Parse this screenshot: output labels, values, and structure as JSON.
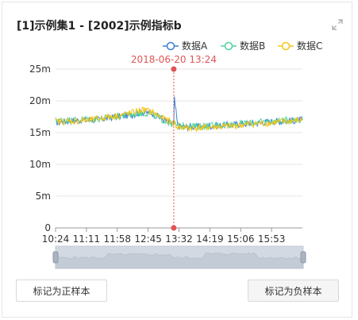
{
  "panel": {
    "title": "[1]示例集1 - [2002]示例指标b",
    "expand_icon": "expand-arrows-icon"
  },
  "buttons": {
    "mark_positive": "标记为正样本",
    "mark_negative": "标记为负样本"
  },
  "colors": {
    "series_a": "#3b7fd8",
    "series_b": "#4fd39a",
    "series_c": "#f5c518",
    "marker": "#e05555",
    "grid": "#e6e6e6",
    "zoom_fill": "#d2d9e3"
  },
  "chart_data": {
    "type": "line",
    "title": "",
    "xlabel": "",
    "ylabel": "",
    "x_ticks": [
      "10:24",
      "11:11",
      "11:58",
      "12:45",
      "13:32",
      "14:19",
      "15:06",
      "15:53"
    ],
    "y_ticks": [
      "0",
      "5m",
      "10m",
      "15m",
      "20m",
      "25m"
    ],
    "ylim": [
      0,
      25000000
    ],
    "x_range_minutes": [
      624,
      1000
    ],
    "legend": [
      "数据A",
      "数据B",
      "数据C"
    ],
    "legend_position": "top-right",
    "grid": true,
    "marker_label": "2018-06-20 13:24",
    "marker_time_minutes": 804,
    "series": [
      {
        "name": "数据A",
        "color": "#3b7fd8",
        "points": [
          [
            624,
            16.6
          ],
          [
            650,
            16.9
          ],
          [
            680,
            17.0
          ],
          [
            700,
            17.2
          ],
          [
            720,
            17.5
          ],
          [
            740,
            17.8
          ],
          [
            755,
            18.2
          ],
          [
            770,
            18.1
          ],
          [
            785,
            17.2
          ],
          [
            795,
            16.7
          ],
          [
            804,
            16.4
          ],
          [
            805,
            20.3
          ],
          [
            810,
            16.0
          ],
          [
            830,
            15.9
          ],
          [
            850,
            16.0
          ],
          [
            870,
            16.1
          ],
          [
            890,
            16.2
          ],
          [
            910,
            16.4
          ],
          [
            930,
            16.5
          ],
          [
            950,
            16.7
          ],
          [
            970,
            16.8
          ],
          [
            1000,
            17.0
          ]
        ]
      },
      {
        "name": "数据B",
        "color": "#4fd39a",
        "points": [
          [
            624,
            16.9
          ],
          [
            650,
            17.0
          ],
          [
            680,
            17.1
          ],
          [
            700,
            17.3
          ],
          [
            720,
            17.6
          ],
          [
            740,
            17.9
          ],
          [
            755,
            18.1
          ],
          [
            770,
            18.0
          ],
          [
            785,
            17.1
          ],
          [
            795,
            16.6
          ],
          [
            804,
            16.3
          ],
          [
            810,
            16.1
          ],
          [
            830,
            16.0
          ],
          [
            850,
            16.0
          ],
          [
            870,
            16.2
          ],
          [
            890,
            16.3
          ],
          [
            910,
            16.4
          ],
          [
            930,
            16.6
          ],
          [
            950,
            16.7
          ],
          [
            970,
            16.9
          ],
          [
            1000,
            17.1
          ]
        ]
      },
      {
        "name": "数据C",
        "color": "#f5c518",
        "points": [
          [
            624,
            16.7
          ],
          [
            650,
            16.8
          ],
          [
            680,
            17.0
          ],
          [
            700,
            17.4
          ],
          [
            720,
            17.7
          ],
          [
            740,
            18.1
          ],
          [
            755,
            18.6
          ],
          [
            770,
            18.3
          ],
          [
            785,
            17.4
          ],
          [
            795,
            16.9
          ],
          [
            804,
            16.5
          ],
          [
            810,
            15.9
          ],
          [
            830,
            15.7
          ],
          [
            850,
            15.8
          ],
          [
            870,
            15.9
          ],
          [
            890,
            16.0
          ],
          [
            910,
            16.2
          ],
          [
            930,
            16.4
          ],
          [
            950,
            16.5
          ],
          [
            970,
            16.7
          ],
          [
            1000,
            17.0
          ]
        ]
      }
    ]
  }
}
